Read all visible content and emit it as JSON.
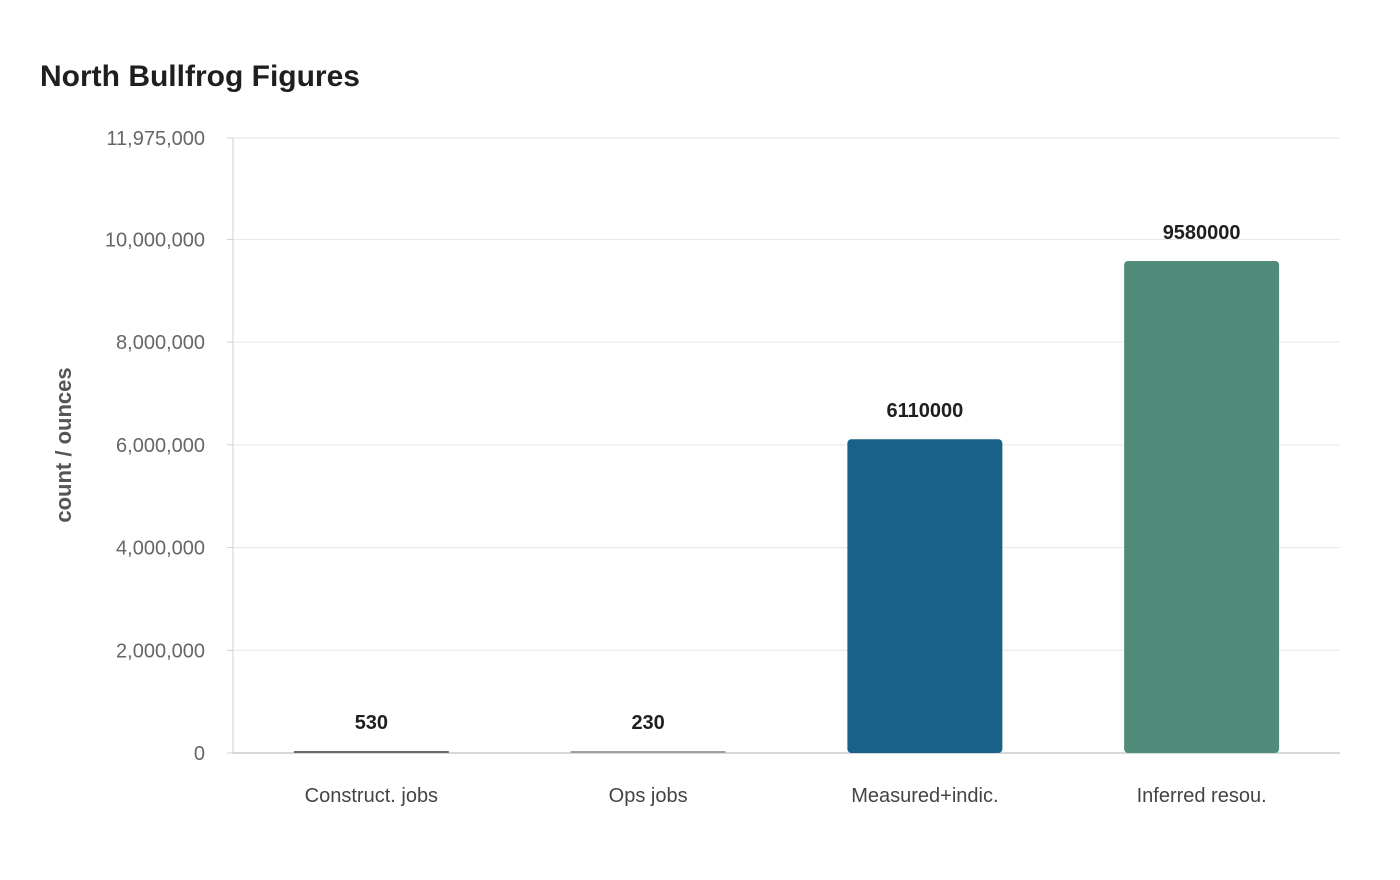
{
  "chart_data": {
    "type": "bar",
    "title": "North Bullfrog Figures",
    "ylabel": "count / ounces",
    "xlabel": "",
    "categories": [
      "Construct. jobs",
      "Ops jobs",
      "Measured+indic.",
      "Inferred resou."
    ],
    "values": [
      530,
      230,
      6110000,
      9580000
    ],
    "value_labels": [
      "530",
      "230",
      "6110000",
      "9580000"
    ],
    "colors": [
      "#6b6b6b",
      "#a0a0a0",
      "#186289",
      "#4f8c7a"
    ],
    "ylim": [
      0,
      11975000
    ],
    "yticks": [
      0,
      2000000,
      4000000,
      6000000,
      8000000,
      10000000,
      11975000
    ],
    "ytick_labels": [
      "0",
      "2,000,000",
      "4,000,000",
      "6,000,000",
      "8,000,000",
      "10,000,000",
      "11,975,000"
    ],
    "grid": true,
    "legend": "none"
  }
}
